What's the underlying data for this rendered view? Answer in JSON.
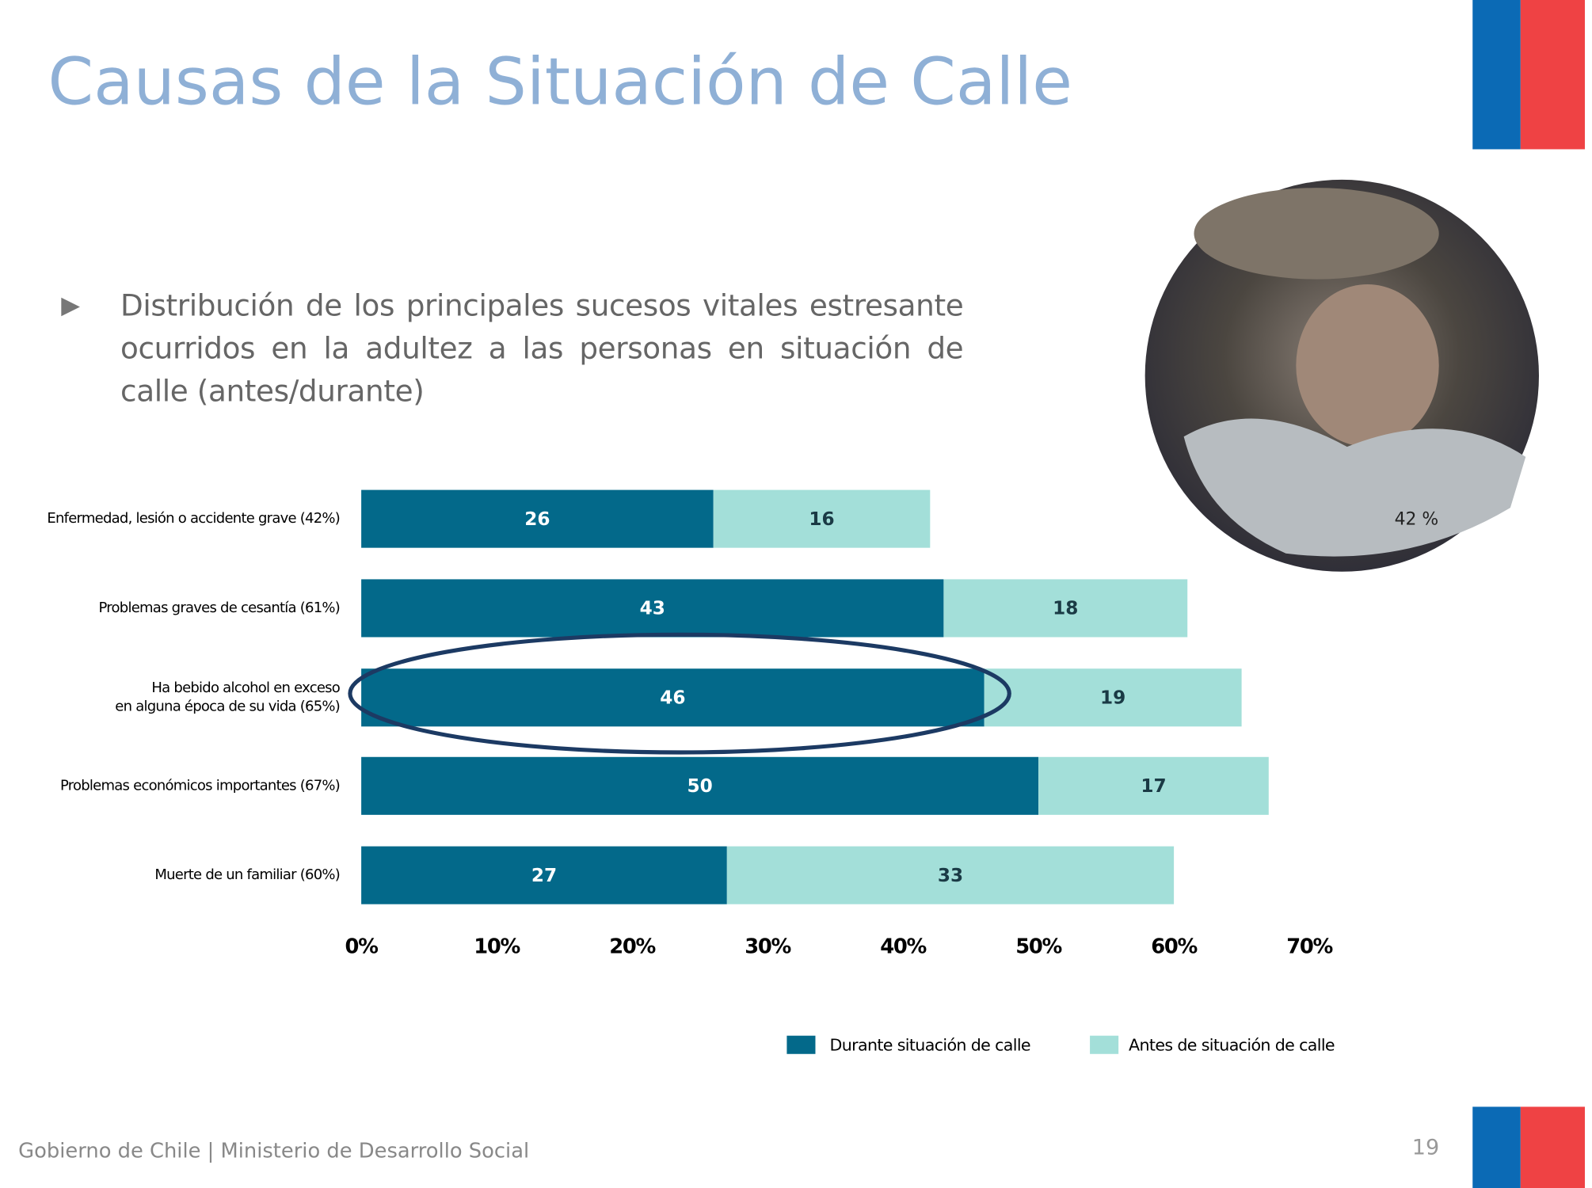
{
  "slide": {
    "title": "Causas de la Situación de Calle",
    "bullet": "Distribución de los principales sucesos vitales estresante ocurridos en la adultez a las personas en situación de calle (antes/durante)",
    "footer": "Gobierno de Chile | Ministerio de Desarrollo Social",
    "page_number": "19"
  },
  "chart_data": {
    "type": "stacked-bar-horizontal",
    "categories": [
      "Enfermedad, lesión o accidente grave (42%)",
      "Problemas graves de cesantía (61%)",
      "Ha bebido alcohol en exceso en alguna época de su vida (65%)",
      "Problemas económicos importantes (67%)",
      "Muerte de un familiar (60%)"
    ],
    "series": [
      {
        "name": "Durante situación de calle",
        "color": "#03698a",
        "values": [
          26,
          43,
          46,
          50,
          27
        ]
      },
      {
        "name": "Antes de situación de calle",
        "color": "#a3dfd9",
        "values": [
          16,
          18,
          19,
          17,
          33
        ]
      }
    ],
    "xlim": [
      0,
      70
    ],
    "xticks": [
      {
        "value": 0,
        "label": "0%"
      },
      {
        "value": 10,
        "label": "10%"
      },
      {
        "value": 20,
        "label": "20%"
      },
      {
        "value": 30,
        "label": "30%"
      },
      {
        "value": 40,
        "label": "40%"
      },
      {
        "value": 50,
        "label": "50%"
      },
      {
        "value": 60,
        "label": "60%"
      },
      {
        "value": 70,
        "label": "70%"
      }
    ],
    "annotation": "42 %"
  }
}
